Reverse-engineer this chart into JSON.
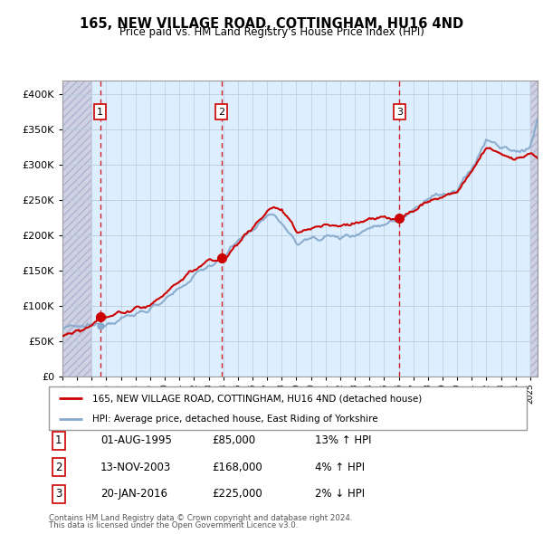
{
  "title": "165, NEW VILLAGE ROAD, COTTINGHAM, HU16 4ND",
  "subtitle": "Price paid vs. HM Land Registry's House Price Index (HPI)",
  "legend_line1": "165, NEW VILLAGE ROAD, COTTINGHAM, HU16 4ND (detached house)",
  "legend_line2": "HPI: Average price, detached house, East Riding of Yorkshire",
  "footer1": "Contains HM Land Registry data © Crown copyright and database right 2024.",
  "footer2": "This data is licensed under the Open Government Licence v3.0.",
  "table_data": [
    [
      "1",
      "01-AUG-1995",
      "£85,000",
      "13% ↑ HPI"
    ],
    [
      "2",
      "13-NOV-2003",
      "£168,000",
      "4% ↑ HPI"
    ],
    [
      "3",
      "20-JAN-2016",
      "£225,000",
      "2% ↓ HPI"
    ]
  ],
  "trans_years": [
    1995.58,
    2003.87,
    2016.05
  ],
  "trans_prices": [
    85000,
    168000,
    225000
  ],
  "ylim": [
    0,
    420000
  ],
  "yticks": [
    0,
    50000,
    100000,
    150000,
    200000,
    250000,
    300000,
    350000,
    400000
  ],
  "xlim_start": 1993.0,
  "xlim_end": 2025.5,
  "red_color": "#cc0000",
  "hpi_color": "#88aacc",
  "bg_color": "#ddeeff",
  "grid_color": "#bbccdd",
  "hatch_color": "#bbbbcc",
  "label_box_color": "#cc0000"
}
